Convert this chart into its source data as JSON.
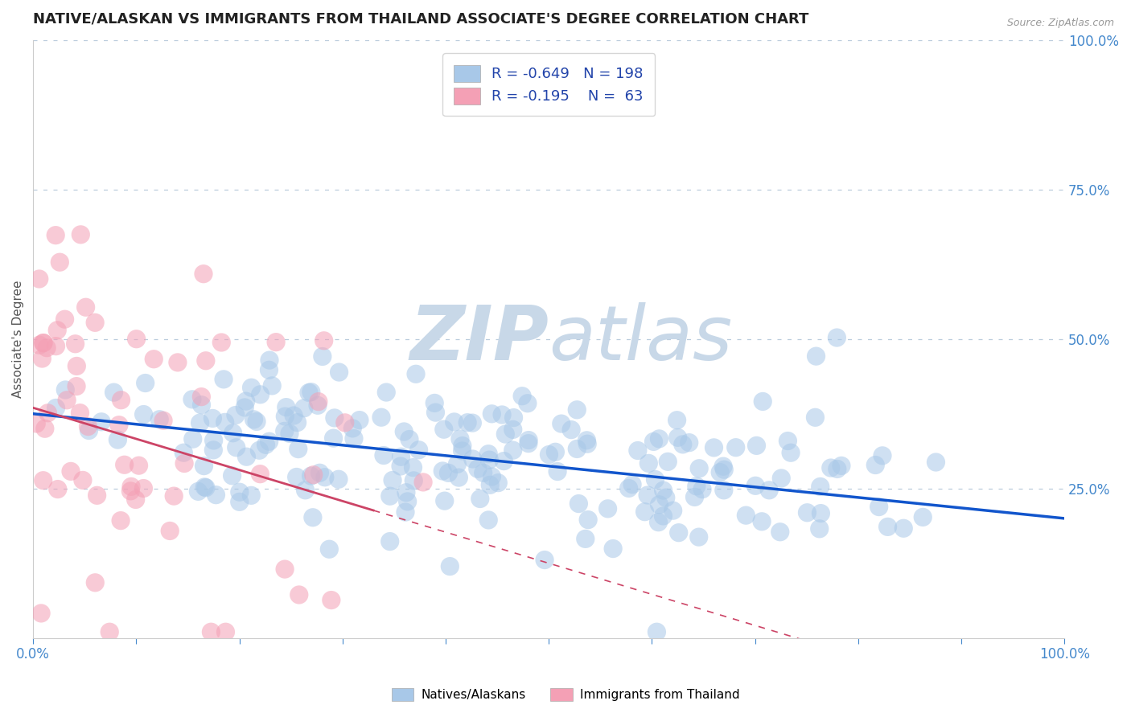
{
  "title": "NATIVE/ALASKAN VS IMMIGRANTS FROM THAILAND ASSOCIATE'S DEGREE CORRELATION CHART",
  "source_text": "Source: ZipAtlas.com",
  "ylabel": "Associate's Degree",
  "xlim": [
    0,
    1
  ],
  "ylim": [
    0,
    1
  ],
  "ytick_labels_right": [
    "25.0%",
    "50.0%",
    "75.0%",
    "100.0%"
  ],
  "yticks_right": [
    0.25,
    0.5,
    0.75,
    1.0
  ],
  "blue_R": -0.649,
  "blue_N": 198,
  "pink_R": -0.195,
  "pink_N": 63,
  "blue_color": "#a8c8e8",
  "pink_color": "#f4a0b5",
  "blue_line_color": "#1155cc",
  "pink_line_color": "#cc4466",
  "title_color": "#222222",
  "axis_color": "#4488cc",
  "watermark_zip_color": "#c8d8e8",
  "watermark_atlas_color": "#c8d8e8",
  "grid_color": "#bbccdd",
  "legend_color": "#2244aa",
  "blue_intercept": 0.375,
  "blue_slope": -0.175,
  "pink_intercept": 0.385,
  "pink_slope": -0.52,
  "seed": 99
}
